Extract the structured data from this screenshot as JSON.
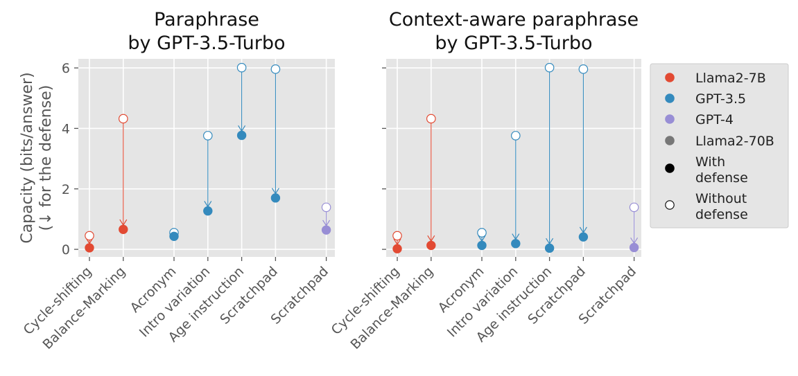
{
  "chart_data": [
    {
      "type": "scatter",
      "title_lines": [
        "Paraphrase",
        "by GPT-3.5-Turbo"
      ],
      "ylabel_lines": [
        "Capacity (bits/answer)",
        "(↓ for the defense)"
      ],
      "categories": [
        "Cycle-shifting",
        "Balance-Marking",
        "Acronym",
        "Intro variation",
        "Age instruction",
        "Scratchpad",
        "Scratchpad"
      ],
      "x": [
        0,
        1,
        2.5,
        3.5,
        4.5,
        5.5,
        7
      ],
      "yticks": [
        "0",
        "2",
        "4",
        "6"
      ],
      "ylim": [
        -0.25,
        6.3
      ],
      "series": [
        {
          "category": "Cycle-shifting",
          "model": "Llama2-7B",
          "without_defense": 0.45,
          "with_defense": 0.05
        },
        {
          "category": "Balance-Marking",
          "model": "Llama2-7B",
          "without_defense": 4.32,
          "with_defense": 0.66
        },
        {
          "category": "Acronym",
          "model": "GPT-3.5",
          "without_defense": 0.55,
          "with_defense": 0.43
        },
        {
          "category": "Intro variation",
          "model": "GPT-3.5",
          "without_defense": 3.76,
          "with_defense": 1.27
        },
        {
          "category": "Age instruction",
          "model": "GPT-3.5",
          "without_defense": 6.01,
          "with_defense": 3.77
        },
        {
          "category": "Scratchpad",
          "model": "GPT-3.5",
          "without_defense": 5.96,
          "with_defense": 1.7
        },
        {
          "category": "Scratchpad",
          "model": "GPT-4",
          "without_defense": 1.39,
          "with_defense": 0.64
        }
      ]
    },
    {
      "type": "scatter",
      "title_lines": [
        "Context-aware paraphrase",
        "by GPT-3.5-Turbo"
      ],
      "categories": [
        "Cycle-shifting",
        "Balance-Marking",
        "Acronym",
        "Intro variation",
        "Age instruction",
        "Scratchpad",
        "Scratchpad"
      ],
      "x": [
        0,
        1,
        2.5,
        3.5,
        4.5,
        5.5,
        7
      ],
      "ylim": [
        -0.25,
        6.3
      ],
      "series": [
        {
          "category": "Cycle-shifting",
          "model": "Llama2-7B",
          "without_defense": 0.45,
          "with_defense": 0.02
        },
        {
          "category": "Balance-Marking",
          "model": "Llama2-7B",
          "without_defense": 4.32,
          "with_defense": 0.13
        },
        {
          "category": "Acronym",
          "model": "GPT-3.5",
          "without_defense": 0.55,
          "with_defense": 0.13
        },
        {
          "category": "Intro variation",
          "model": "GPT-3.5",
          "without_defense": 3.76,
          "with_defense": 0.19
        },
        {
          "category": "Age instruction",
          "model": "GPT-3.5",
          "without_defense": 6.01,
          "with_defense": 0.04
        },
        {
          "category": "Scratchpad",
          "model": "GPT-3.5",
          "without_defense": 5.96,
          "with_defense": 0.41
        },
        {
          "category": "Scratchpad",
          "model": "GPT-4",
          "without_defense": 1.39,
          "with_defense": 0.06
        }
      ]
    }
  ],
  "legend": {
    "placement": "right",
    "entries": [
      {
        "key": "llama7b",
        "lines": [
          "Llama2-7B"
        ],
        "marker": "filled",
        "color": "#E24A33"
      },
      {
        "key": "gpt35",
        "lines": [
          "GPT-3.5"
        ],
        "marker": "filled",
        "color": "#348ABD"
      },
      {
        "key": "gpt4",
        "lines": [
          "GPT-4"
        ],
        "marker": "filled",
        "color": "#988ED5"
      },
      {
        "key": "llama70b",
        "lines": [
          "Llama2-70B"
        ],
        "marker": "filled",
        "color": "#777777"
      },
      {
        "key": "with",
        "lines": [
          "With",
          "defense"
        ],
        "marker": "filled",
        "color": "#000000"
      },
      {
        "key": "without",
        "lines": [
          "Without",
          "defense"
        ],
        "marker": "hollow",
        "color": "#000000"
      }
    ]
  },
  "colors": {
    "Llama2-7B": "#E24A33",
    "GPT-3.5": "#348ABD",
    "GPT-4": "#988ED5",
    "Llama2-70B": "#777777",
    "panel_bg": "#E5E5E5",
    "grid": "#FFFFFF",
    "text": "#555555"
  }
}
